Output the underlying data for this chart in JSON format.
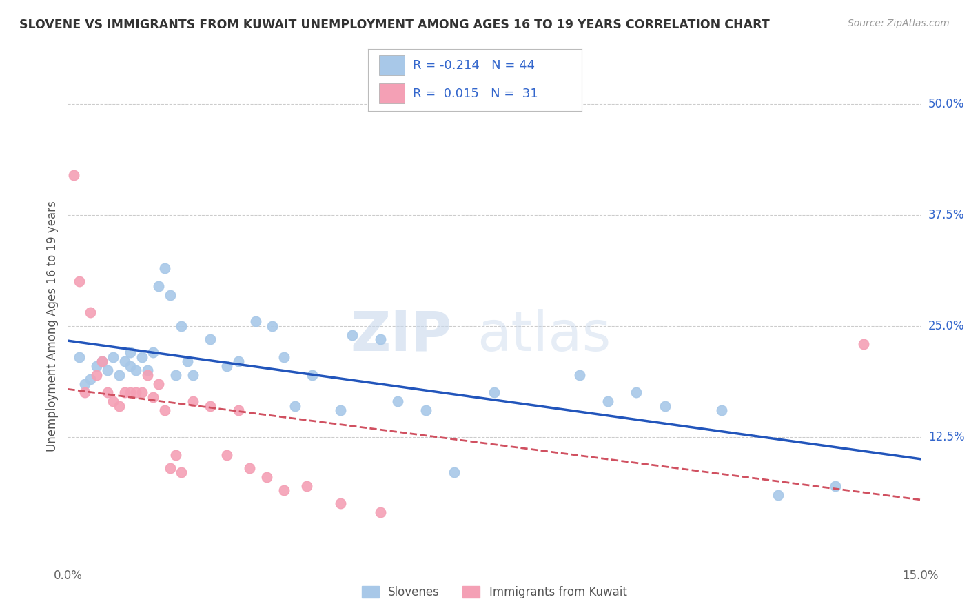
{
  "title": "SLOVENE VS IMMIGRANTS FROM KUWAIT UNEMPLOYMENT AMONG AGES 16 TO 19 YEARS CORRELATION CHART",
  "source": "Source: ZipAtlas.com",
  "ylabel": "Unemployment Among Ages 16 to 19 years",
  "xlim": [
    0.0,
    0.15
  ],
  "ylim": [
    -0.02,
    0.52
  ],
  "xticks": [
    0.0,
    0.05,
    0.1,
    0.15
  ],
  "xticklabels": [
    "0.0%",
    "",
    "",
    "15.0%"
  ],
  "yticks": [
    0.125,
    0.25,
    0.375,
    0.5
  ],
  "yticklabels": [
    "12.5%",
    "25.0%",
    "37.5%",
    "50.0%"
  ],
  "slovene_color": "#a8c8e8",
  "kuwait_color": "#f4a0b5",
  "slovene_line_color": "#2255bb",
  "kuwait_line_color": "#d05060",
  "watermark_zip": "ZIP",
  "watermark_atlas": "atlas",
  "legend_R1": "-0.214",
  "legend_N1": "44",
  "legend_R2": "0.015",
  "legend_N2": "31",
  "slovene_x": [
    0.002,
    0.003,
    0.004,
    0.005,
    0.006,
    0.007,
    0.008,
    0.009,
    0.01,
    0.011,
    0.011,
    0.012,
    0.013,
    0.014,
    0.015,
    0.016,
    0.017,
    0.018,
    0.019,
    0.02,
    0.021,
    0.022,
    0.025,
    0.028,
    0.03,
    0.033,
    0.036,
    0.038,
    0.04,
    0.043,
    0.048,
    0.05,
    0.055,
    0.058,
    0.063,
    0.068,
    0.075,
    0.09,
    0.095,
    0.1,
    0.105,
    0.115,
    0.125,
    0.135
  ],
  "slovene_y": [
    0.215,
    0.185,
    0.19,
    0.205,
    0.21,
    0.2,
    0.215,
    0.195,
    0.21,
    0.22,
    0.205,
    0.2,
    0.215,
    0.2,
    0.22,
    0.295,
    0.315,
    0.285,
    0.195,
    0.25,
    0.21,
    0.195,
    0.235,
    0.205,
    0.21,
    0.255,
    0.25,
    0.215,
    0.16,
    0.195,
    0.155,
    0.24,
    0.235,
    0.165,
    0.155,
    0.085,
    0.175,
    0.195,
    0.165,
    0.175,
    0.16,
    0.155,
    0.06,
    0.07
  ],
  "kuwait_x": [
    0.001,
    0.002,
    0.003,
    0.004,
    0.005,
    0.006,
    0.007,
    0.008,
    0.009,
    0.01,
    0.011,
    0.012,
    0.013,
    0.014,
    0.015,
    0.016,
    0.017,
    0.018,
    0.019,
    0.02,
    0.022,
    0.025,
    0.028,
    0.03,
    0.032,
    0.035,
    0.038,
    0.042,
    0.048,
    0.055,
    0.14
  ],
  "kuwait_y": [
    0.42,
    0.3,
    0.175,
    0.265,
    0.195,
    0.21,
    0.175,
    0.165,
    0.16,
    0.175,
    0.175,
    0.175,
    0.175,
    0.195,
    0.17,
    0.185,
    0.155,
    0.09,
    0.105,
    0.085,
    0.165,
    0.16,
    0.105,
    0.155,
    0.09,
    0.08,
    0.065,
    0.07,
    0.05,
    0.04,
    0.23
  ]
}
